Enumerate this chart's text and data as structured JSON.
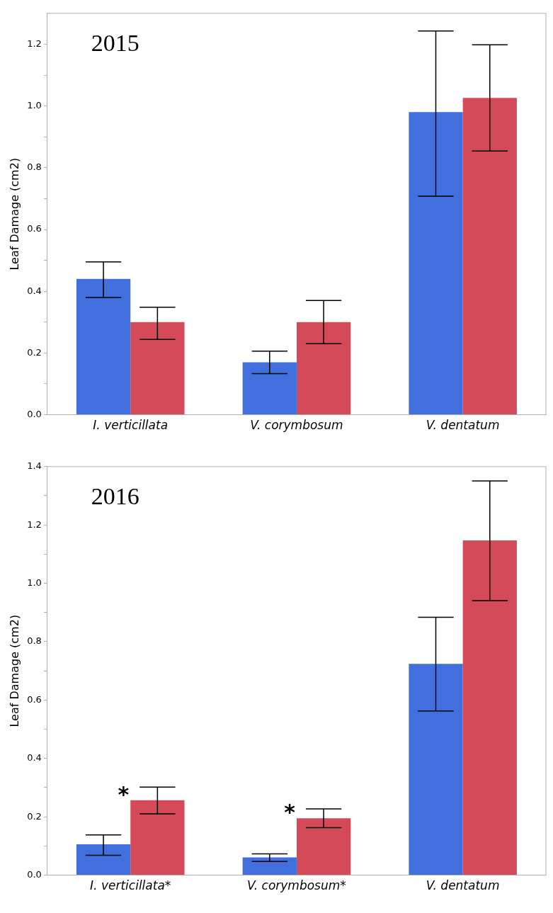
{
  "chart_data": [
    {
      "type": "bar",
      "title": "2015",
      "ylabel": "Leaf Damage (cm2)",
      "categories": [
        "I. verticillata",
        "V. corymbosum",
        "V. dentatum"
      ],
      "series": [
        {
          "color": "#4170de",
          "values": [
            0.44,
            0.17,
            0.98
          ],
          "errors": [
            [
              0.38,
              0.495
            ],
            [
              0.133,
              0.206
            ],
            [
              0.708,
              1.243
            ]
          ]
        },
        {
          "color": "#d44a58",
          "values": [
            0.3,
            0.3,
            1.026
          ],
          "errors": [
            [
              0.244,
              0.348
            ],
            [
              0.23,
              0.37
            ],
            [
              0.854,
              1.198
            ]
          ]
        }
      ],
      "ylim": [
        0,
        1.3
      ],
      "yticks": [
        {
          "value": 0,
          "label": "0.0"
        },
        {
          "value": 0.1,
          "label": null
        },
        0.2,
        {
          "value": 0.3,
          "label": null
        },
        0.4,
        {
          "value": 0.5,
          "label": null
        },
        0.6,
        {
          "value": 0.7,
          "label": null
        },
        0.8,
        {
          "value": 0.9,
          "label": null
        },
        {
          "value": 1,
          "label": "1.0"
        },
        {
          "value": 1.1,
          "label": null
        },
        1.2
      ],
      "grid": false,
      "legend": false
    },
    {
      "type": "bar",
      "title": "2016",
      "ylabel": "Leaf Damage (cm2)",
      "categories": [
        "I. verticillata*",
        "V. corymbosum*",
        "V. dentatum"
      ],
      "series": [
        {
          "color": "#4170de",
          "values": [
            0.106,
            0.061,
            0.724
          ],
          "errors": [
            [
              0.068,
              0.138
            ],
            [
              0.047,
              0.073
            ],
            [
              0.563,
              0.884
            ]
          ]
        },
        {
          "color": "#d44a58",
          "values": [
            0.257,
            0.195,
            1.147
          ],
          "errors": [
            [
              0.21,
              0.302
            ],
            [
              0.163,
              0.227
            ],
            [
              0.941,
              1.351
            ]
          ]
        }
      ],
      "ylim": [
        0,
        1.4
      ],
      "yticks": [
        {
          "value": 0,
          "label": "0.0"
        },
        {
          "value": 0.1,
          "label": null
        },
        0.2,
        {
          "value": 0.3,
          "label": null
        },
        0.4,
        {
          "value": 0.5,
          "label": null
        },
        0.6,
        {
          "value": 0.7,
          "label": null
        },
        0.8,
        {
          "value": 0.9,
          "label": null
        },
        {
          "value": 1,
          "label": "1.0"
        },
        {
          "value": 1.1,
          "label": null
        },
        1.2,
        {
          "value": 1.3,
          "label": null
        },
        1.4
      ],
      "grid": false,
      "legend": false,
      "annotations": [
        "*",
        "*"
      ]
    }
  ]
}
